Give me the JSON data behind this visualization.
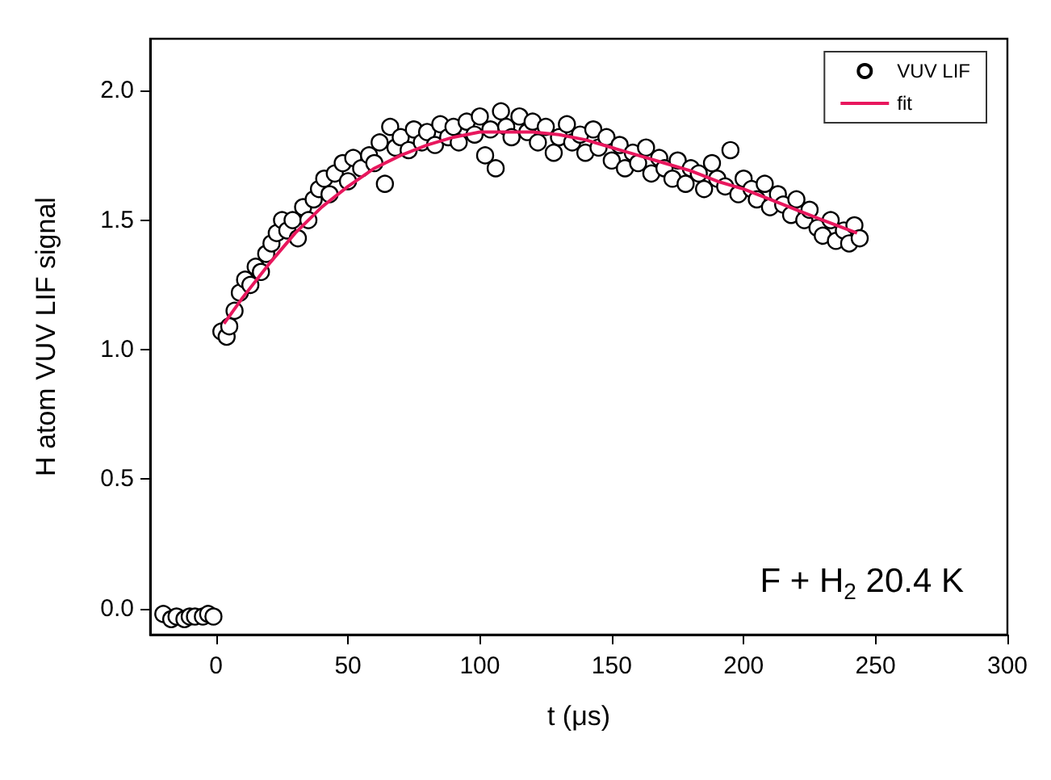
{
  "chart_data": {
    "type": "scatter",
    "xlabel": "t (μs)",
    "ylabel": "H atom VUV LIF signal",
    "annotations": [
      "F + H$_{2}$ 20.4 K"
    ],
    "xlim": [
      -25,
      300
    ],
    "xticks": [
      0,
      50,
      100,
      150,
      200,
      250,
      300
    ],
    "ylim": [
      -0.1,
      2.2
    ],
    "yticks": [
      {
        "value": 0,
        "label": "0.0"
      },
      {
        "value": 0.5,
        "label": "0.5"
      },
      {
        "value": 1,
        "label": "1.0"
      },
      {
        "value": 1.5,
        "label": "1.5"
      },
      {
        "value": 2,
        "label": "2.0"
      }
    ],
    "grid": false,
    "legend": "top right",
    "series": [
      {
        "name": "VUV LIF",
        "marker": "circle",
        "color": "#000000",
        "x": [
          -20,
          -17,
          -15,
          -12,
          -10,
          -8,
          -5,
          -3,
          -1,
          2,
          4,
          5,
          7,
          9,
          11,
          13,
          15,
          17,
          19,
          21,
          23,
          25,
          27,
          29,
          31,
          33,
          35,
          37,
          39,
          41,
          43,
          45,
          48,
          50,
          52,
          55,
          58,
          60,
          62,
          64,
          66,
          68,
          70,
          73,
          75,
          78,
          80,
          83,
          85,
          88,
          90,
          92,
          95,
          98,
          100,
          102,
          104,
          106,
          108,
          110,
          112,
          115,
          118,
          120,
          122,
          125,
          128,
          130,
          133,
          135,
          138,
          140,
          143,
          145,
          148,
          150,
          153,
          155,
          158,
          160,
          163,
          165,
          168,
          170,
          173,
          175,
          178,
          180,
          183,
          185,
          188,
          190,
          193,
          195,
          198,
          200,
          203,
          205,
          208,
          210,
          213,
          215,
          218,
          220,
          223,
          225,
          228,
          230,
          233,
          235,
          238,
          240,
          242,
          244
        ],
        "values": [
          -0.02,
          -0.04,
          -0.03,
          -0.04,
          -0.03,
          -0.03,
          -0.03,
          -0.02,
          -0.03,
          1.07,
          1.05,
          1.09,
          1.15,
          1.22,
          1.27,
          1.25,
          1.32,
          1.3,
          1.37,
          1.41,
          1.45,
          1.5,
          1.46,
          1.5,
          1.43,
          1.55,
          1.5,
          1.58,
          1.62,
          1.66,
          1.6,
          1.68,
          1.72,
          1.65,
          1.74,
          1.7,
          1.75,
          1.72,
          1.8,
          1.64,
          1.86,
          1.78,
          1.82,
          1.77,
          1.85,
          1.8,
          1.84,
          1.79,
          1.87,
          1.82,
          1.86,
          1.8,
          1.88,
          1.83,
          1.9,
          1.75,
          1.85,
          1.7,
          1.92,
          1.86,
          1.82,
          1.9,
          1.84,
          1.88,
          1.8,
          1.86,
          1.76,
          1.82,
          1.87,
          1.8,
          1.83,
          1.76,
          1.85,
          1.78,
          1.82,
          1.73,
          1.79,
          1.7,
          1.76,
          1.72,
          1.78,
          1.68,
          1.74,
          1.7,
          1.66,
          1.73,
          1.64,
          1.7,
          1.68,
          1.62,
          1.72,
          1.66,
          1.63,
          1.77,
          1.6,
          1.66,
          1.62,
          1.58,
          1.64,
          1.55,
          1.6,
          1.56,
          1.52,
          1.58,
          1.5,
          1.54,
          1.47,
          1.44,
          1.5,
          1.42,
          1.46,
          1.41,
          1.48,
          1.43
        ]
      },
      {
        "name": "fit",
        "type": "line",
        "marker": "none",
        "line_style": "solid",
        "color": "#e8175d",
        "x": [
          3,
          10,
          20,
          30,
          40,
          50,
          60,
          70,
          80,
          90,
          100,
          110,
          120,
          130,
          140,
          150,
          160,
          170,
          180,
          190,
          200,
          210,
          220,
          230,
          243
        ],
        "values": [
          1.1,
          1.2,
          1.33,
          1.45,
          1.55,
          1.63,
          1.7,
          1.75,
          1.79,
          1.82,
          1.84,
          1.84,
          1.84,
          1.83,
          1.81,
          1.78,
          1.75,
          1.72,
          1.69,
          1.65,
          1.62,
          1.58,
          1.54,
          1.5,
          1.45
        ]
      }
    ]
  }
}
